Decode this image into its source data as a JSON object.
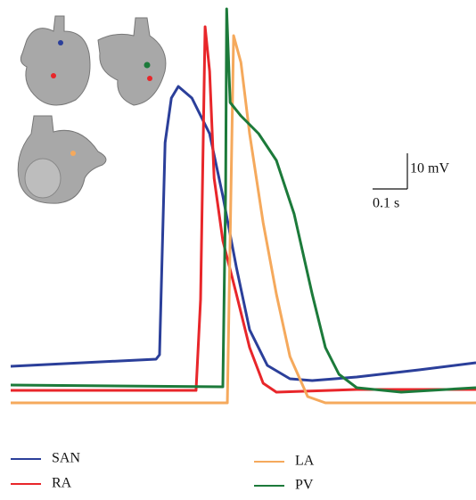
{
  "chart_data": {
    "type": "line",
    "xlim": [
      0,
      1.338
    ],
    "ylim": [
      0,
      110
    ],
    "scale_bar": {
      "x_value": 0.1,
      "x_label": "0.1 s",
      "y_value": 10,
      "y_label": "10 mV"
    },
    "series": [
      {
        "name": "SAN",
        "color": "#2b3f9a",
        "x": [
          0,
          0.418,
          0.428,
          0.444,
          0.462,
          0.482,
          0.521,
          0.572,
          0.61,
          0.649,
          0.687,
          0.738,
          0.803,
          0.867,
          0.995,
          1.174,
          1.338
        ],
        "values": [
          11.25,
          13.25,
          14.5,
          74,
          86.5,
          89.75,
          86.5,
          76.5,
          59,
          39,
          21.5,
          11.5,
          7.75,
          7.25,
          8.25,
          10.25,
          12.25
        ]
      },
      {
        "name": "RA",
        "color": "#e8262a",
        "x": [
          0,
          0.533,
          0.546,
          0.559,
          0.572,
          0.585,
          0.61,
          0.649,
          0.687,
          0.726,
          0.764,
          0.995,
          1.338
        ],
        "values": [
          4.5,
          4.5,
          30,
          106.5,
          94,
          64,
          46.5,
          31.5,
          16.5,
          6.5,
          4,
          4.75,
          4.75
        ]
      },
      {
        "name": "LA",
        "color": "#f5a95c",
        "x": [
          0,
          0.623,
          0.641,
          0.662,
          0.687,
          0.726,
          0.764,
          0.803,
          0.854,
          0.905,
          1.338
        ],
        "values": [
          1,
          1,
          104,
          96.5,
          76.5,
          51.5,
          31.5,
          14,
          2.75,
          1,
          1
        ]
      },
      {
        "name": "PV",
        "color": "#1c7a3a",
        "x": [
          0,
          0.61,
          0.618,
          0.621,
          0.631,
          0.662,
          0.713,
          0.764,
          0.815,
          0.867,
          0.905,
          0.944,
          0.995,
          1.123,
          1.338
        ],
        "values": [
          6,
          5.5,
          60,
          111.5,
          85.25,
          81.5,
          76.5,
          69,
          54,
          31.5,
          16.5,
          9,
          5.25,
          4,
          5.25
        ]
      }
    ]
  }
}
